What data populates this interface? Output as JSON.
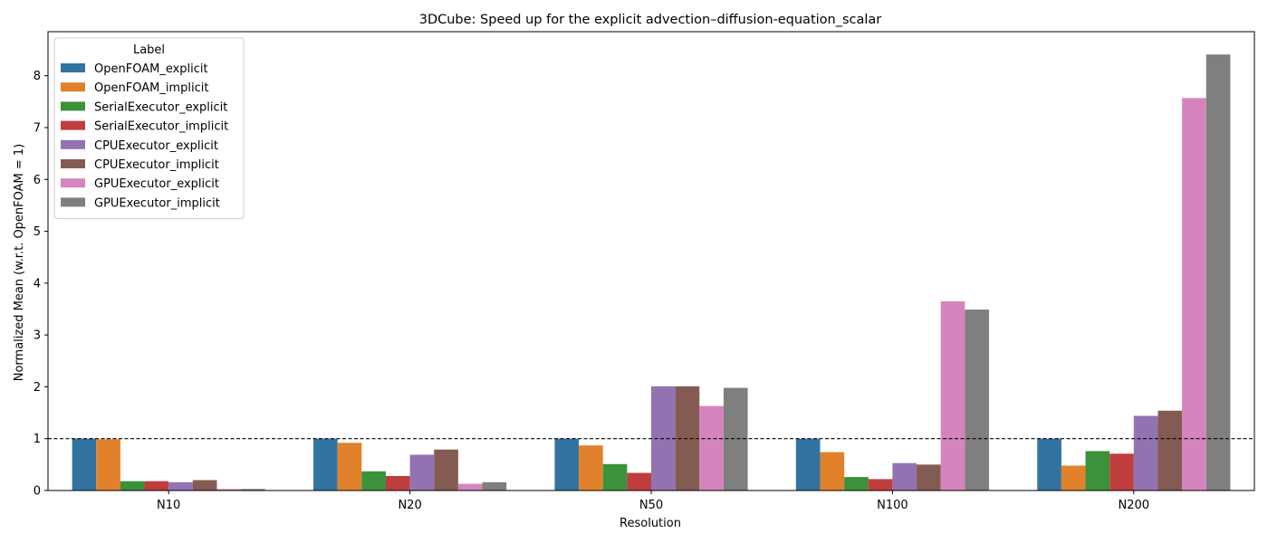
{
  "chart_data": {
    "type": "bar",
    "title": "3DCube: Speed up for the explicit advection–diffusion-equation_scalar",
    "xlabel": "Resolution",
    "ylabel": "Normalized Mean (w.r.t. OpenFOAM = 1)",
    "categories": [
      "N10",
      "N20",
      "N50",
      "N100",
      "N200"
    ],
    "ylim": [
      0,
      8.85
    ],
    "yticks": [
      0,
      1,
      2,
      3,
      4,
      5,
      6,
      7,
      8
    ],
    "reference_line": 1,
    "legend": {
      "title": "Label",
      "placement": "top-left"
    },
    "series": [
      {
        "name": "OpenFOAM_explicit",
        "color": "#3274a1",
        "values": [
          1.0,
          1.0,
          1.0,
          1.0,
          1.0
        ]
      },
      {
        "name": "OpenFOAM_implicit",
        "color": "#e1812c",
        "values": [
          0.99,
          0.92,
          0.87,
          0.74,
          0.48
        ]
      },
      {
        "name": "SerialExecutor_explicit",
        "color": "#3a923a",
        "values": [
          0.18,
          0.37,
          0.51,
          0.26,
          0.76
        ]
      },
      {
        "name": "SerialExecutor_implicit",
        "color": "#c03d3e",
        "values": [
          0.18,
          0.28,
          0.34,
          0.22,
          0.71
        ]
      },
      {
        "name": "CPUExecutor_explicit",
        "color": "#9372b2",
        "values": [
          0.16,
          0.69,
          2.01,
          0.53,
          1.44
        ]
      },
      {
        "name": "CPUExecutor_implicit",
        "color": "#845b53",
        "values": [
          0.2,
          0.79,
          2.01,
          0.5,
          1.54
        ]
      },
      {
        "name": "GPUExecutor_explicit",
        "color": "#d684bd",
        "values": [
          0.03,
          0.13,
          1.63,
          3.65,
          7.57
        ]
      },
      {
        "name": "GPUExecutor_implicit",
        "color": "#7f7f7f",
        "values": [
          0.03,
          0.16,
          1.98,
          3.49,
          8.41
        ]
      }
    ]
  }
}
